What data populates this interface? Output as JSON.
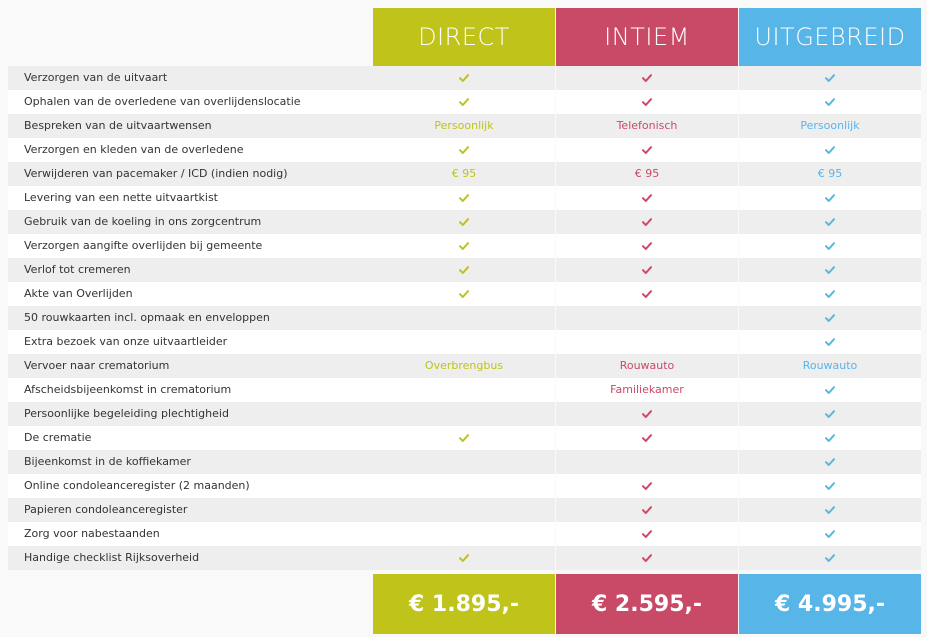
{
  "colors": {
    "direct": "#bfc31a",
    "intiem": "#c94a67",
    "uitgebreid": "#58b5e8"
  },
  "plans": [
    {
      "key": "direct",
      "name": "DIRECT",
      "price": "€ 1.895,-"
    },
    {
      "key": "intiem",
      "name": "INTIEM",
      "price": "€ 2.595,-"
    },
    {
      "key": "uitgebreid",
      "name": "UITGEBREID",
      "price": "€ 4.995,-"
    }
  ],
  "features": [
    {
      "label": "Verzorgen van de uitvaart",
      "values": [
        true,
        true,
        true
      ]
    },
    {
      "label": "Ophalen van de overledene van overlijdenslocatie",
      "values": [
        true,
        true,
        true
      ]
    },
    {
      "label": "Bespreken van de uitvaartwensen",
      "values": [
        "Persoonlijk",
        "Telefonisch",
        "Persoonlijk"
      ]
    },
    {
      "label": "Verzorgen en kleden van de overledene",
      "values": [
        true,
        true,
        true
      ]
    },
    {
      "label": "Verwijderen van pacemaker / ICD (indien nodig)",
      "values": [
        "€ 95",
        "€ 95",
        "€ 95"
      ]
    },
    {
      "label": "Levering van een nette uitvaartkist",
      "values": [
        true,
        true,
        true
      ]
    },
    {
      "label": "Gebruik van de koeling in ons zorgcentrum",
      "values": [
        true,
        true,
        true
      ]
    },
    {
      "label": "Verzorgen aangifte overlijden bij gemeente",
      "values": [
        true,
        true,
        true
      ]
    },
    {
      "label": "Verlof tot cremeren",
      "values": [
        true,
        true,
        true
      ]
    },
    {
      "label": "Akte van Overlijden",
      "values": [
        true,
        true,
        true
      ]
    },
    {
      "label": "50 rouwkaarten incl. opmaak en enveloppen",
      "values": [
        false,
        false,
        true
      ]
    },
    {
      "label": "Extra bezoek van onze uitvaartleider",
      "values": [
        false,
        false,
        true
      ]
    },
    {
      "label": "Vervoer naar crematorium",
      "values": [
        "Overbrengbus",
        "Rouwauto",
        "Rouwauto"
      ]
    },
    {
      "label": "Afscheidsbijeenkomst in crematorium",
      "values": [
        false,
        "Familiekamer",
        true
      ]
    },
    {
      "label": "Persoonlijke begeleiding plechtigheid",
      "values": [
        false,
        true,
        true
      ]
    },
    {
      "label": "De crematie",
      "values": [
        true,
        true,
        true
      ]
    },
    {
      "label": "Bijeenkomst in de koffiekamer",
      "values": [
        false,
        false,
        true
      ]
    },
    {
      "label": "Online condoleanceregister (2 maanden)",
      "values": [
        false,
        true,
        true
      ]
    },
    {
      "label": "Papieren condoleanceregister",
      "values": [
        false,
        true,
        true
      ]
    },
    {
      "label": "Zorg voor nabestaanden",
      "values": [
        false,
        true,
        true
      ]
    },
    {
      "label": "Handige checklist Rijksoverheid",
      "values": [
        true,
        true,
        true
      ]
    }
  ]
}
